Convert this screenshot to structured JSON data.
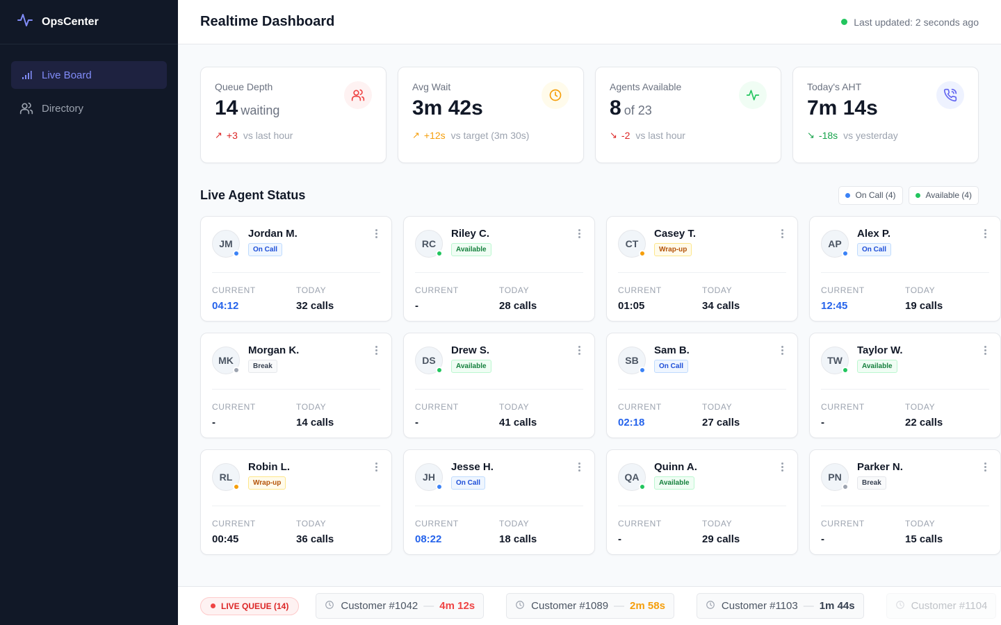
{
  "app": {
    "name": "OpsCenter"
  },
  "nav": [
    {
      "label": "Live Board",
      "icon": "bar-chart-icon",
      "active": true
    },
    {
      "label": "Directory",
      "icon": "users-icon",
      "active": false
    }
  ],
  "header": {
    "title": "Realtime Dashboard",
    "updated": "Last updated: 2 seconds ago"
  },
  "stats": [
    {
      "label": "Queue Depth",
      "value": "14",
      "sub": "waiting",
      "arrow": "↗",
      "delta": "+3",
      "delta_color": "#dc2626",
      "note": "vs last hour",
      "icon": "users-icon",
      "icon_bg": "#fef2f2",
      "icon_color": "#ef4444"
    },
    {
      "label": "Avg Wait",
      "value": "3m 42s",
      "sub": "",
      "arrow": "↗",
      "delta": "+12s",
      "delta_color": "#f59e0b",
      "note": "vs target (3m 30s)",
      "icon": "clock-icon",
      "icon_bg": "#fffbeb",
      "icon_color": "#f59e0b"
    },
    {
      "label": "Agents Available",
      "value": "8",
      "sub": "of 23",
      "arrow": "↘",
      "delta": "-2",
      "delta_color": "#dc2626",
      "note": "vs last hour",
      "icon": "activity-icon",
      "icon_bg": "#f0fdf4",
      "icon_color": "#22c55e"
    },
    {
      "label": "Today's AHT",
      "value": "7m 14s",
      "sub": "",
      "arrow": "↘",
      "delta": "-18s",
      "delta_color": "#16a34a",
      "note": "vs yesterday",
      "icon": "phone-icon",
      "icon_bg": "#eef2ff",
      "icon_color": "#6366f1"
    }
  ],
  "section": {
    "title": "Live Agent Status",
    "legend": [
      {
        "label": "On Call (4)",
        "color": "#3b82f6"
      },
      {
        "label": "Available (4)",
        "color": "#22c55e"
      }
    ]
  },
  "agent_labels": {
    "current": "CURRENT",
    "today": "TODAY"
  },
  "agents": [
    {
      "initials": "JM",
      "name": "Jordan M.",
      "status": "On Call",
      "status_key": "oncall",
      "current": "04:12",
      "today": "32 calls"
    },
    {
      "initials": "RC",
      "name": "Riley C.",
      "status": "Available",
      "status_key": "available",
      "current": "-",
      "today": "28 calls"
    },
    {
      "initials": "CT",
      "name": "Casey T.",
      "status": "Wrap-up",
      "status_key": "wrapup",
      "current": "01:05",
      "today": "34 calls"
    },
    {
      "initials": "AP",
      "name": "Alex P.",
      "status": "On Call",
      "status_key": "oncall",
      "current": "12:45",
      "today": "19 calls"
    },
    {
      "initials": "MK",
      "name": "Morgan K.",
      "status": "Break",
      "status_key": "break",
      "current": "-",
      "today": "14 calls"
    },
    {
      "initials": "DS",
      "name": "Drew S.",
      "status": "Available",
      "status_key": "available",
      "current": "-",
      "today": "41 calls"
    },
    {
      "initials": "SB",
      "name": "Sam B.",
      "status": "On Call",
      "status_key": "oncall",
      "current": "02:18",
      "today": "27 calls"
    },
    {
      "initials": "TW",
      "name": "Taylor W.",
      "status": "Available",
      "status_key": "available",
      "current": "-",
      "today": "22 calls"
    },
    {
      "initials": "RL",
      "name": "Robin L.",
      "status": "Wrap-up",
      "status_key": "wrapup",
      "current": "00:45",
      "today": "36 calls"
    },
    {
      "initials": "JH",
      "name": "Jesse H.",
      "status": "On Call",
      "status_key": "oncall",
      "current": "08:22",
      "today": "18 calls"
    },
    {
      "initials": "QA",
      "name": "Quinn A.",
      "status": "Available",
      "status_key": "available",
      "current": "-",
      "today": "29 calls"
    },
    {
      "initials": "PN",
      "name": "Parker N.",
      "status": "Break",
      "status_key": "break",
      "current": "-",
      "today": "15 calls"
    }
  ],
  "status_colors": {
    "oncall": "#3b82f6",
    "available": "#22c55e",
    "wrapup": "#f59e0b",
    "break": "#9ca3af"
  },
  "queue": {
    "label": "LIVE QUEUE (14)",
    "items": [
      {
        "customer": "Customer #1042",
        "sep": "—",
        "wait": "4m 12s",
        "wait_color": "#ef4444"
      },
      {
        "customer": "Customer #1089",
        "sep": "—",
        "wait": "2m 58s",
        "wait_color": "#f59e0b"
      },
      {
        "customer": "Customer #1103",
        "sep": "—",
        "wait": "1m 44s",
        "wait_color": "#374151"
      },
      {
        "customer": "Customer #1104",
        "sep": "",
        "wait": "",
        "wait_color": "#374151"
      }
    ]
  }
}
